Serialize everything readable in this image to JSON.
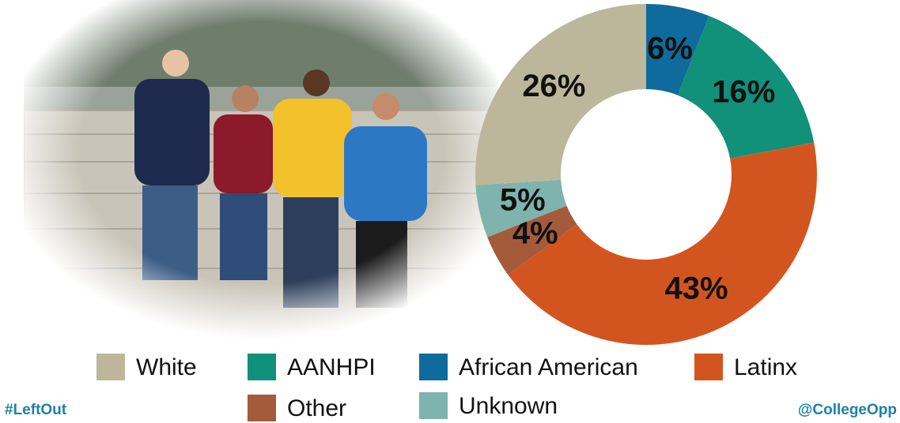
{
  "chart_data": {
    "type": "donut",
    "categories": [
      "African American",
      "AANHPI",
      "Latinx",
      "Other",
      "Unknown",
      "White"
    ],
    "values": [
      6,
      16,
      43,
      4,
      5,
      26
    ],
    "value_labels": [
      "6%",
      "16%",
      "43%",
      "4%",
      "5%",
      "26%"
    ],
    "colors": [
      "#0e6b9c",
      "#11907a",
      "#d25520",
      "#a45b3c",
      "#7fb3ae",
      "#bcb79b"
    ]
  },
  "footer": {
    "left": "#LeftOut",
    "right": "@CollegeOpp"
  }
}
